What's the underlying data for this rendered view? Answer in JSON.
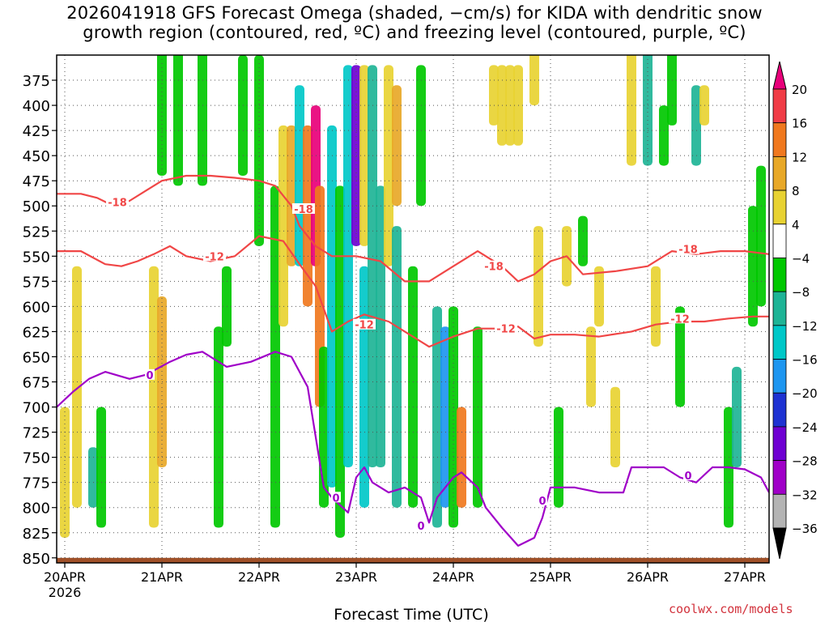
{
  "title": {
    "line1": "2026041918 GFS Forecast Omega (shaded, −cm/s) for KIDA with dendritic snow",
    "line2": "growth region (contoured, red, ºC) and freezing level (contoured, purple, ºC)"
  },
  "credit": "coolwx.com/models",
  "chart_data": {
    "type": "heatmap",
    "xlabel": "Forecast Time (UTC)",
    "ylabel": "",
    "x_ticks": [
      {
        "value": 0,
        "label": "20APR",
        "sublabel": "2026"
      },
      {
        "value": 24,
        "label": "21APR"
      },
      {
        "value": 48,
        "label": "22APR"
      },
      {
        "value": 72,
        "label": "23APR"
      },
      {
        "value": 96,
        "label": "24APR"
      },
      {
        "value": 120,
        "label": "25APR"
      },
      {
        "value": 144,
        "label": "26APR"
      },
      {
        "value": 168,
        "label": "27APR"
      }
    ],
    "xlim_hours": [
      -2,
      174
    ],
    "y_ticks": [
      375,
      400,
      425,
      450,
      475,
      500,
      525,
      550,
      575,
      600,
      625,
      650,
      675,
      700,
      725,
      750,
      775,
      800,
      825,
      850
    ],
    "ylim": [
      350,
      855
    ],
    "grid": true,
    "colorbar": {
      "labels": [
        "20",
        "16",
        "12",
        "8",
        "4",
        "−4",
        "−8",
        "−12",
        "−16",
        "−20",
        "−24",
        "−28",
        "−32",
        "−36"
      ],
      "colors": [
        "#e8007a",
        "#f03c46",
        "#f0781e",
        "#e8a828",
        "#e8d232",
        "#ffffff",
        "#00c800",
        "#1eb496",
        "#00c8c8",
        "#1e96f0",
        "#1e32d2",
        "#6e00d2",
        "#a000c8",
        "#b4b4b4",
        "#000000"
      ]
    },
    "terrain_color": "#a05028",
    "omega_cells": [
      {
        "t": 0,
        "p1": 700,
        "p2": 830,
        "v": 5
      },
      {
        "t": 3,
        "p1": 560,
        "p2": 800,
        "v": 5
      },
      {
        "t": 7,
        "p1": 740,
        "p2": 800,
        "v": -10
      },
      {
        "t": 9,
        "p1": 700,
        "p2": 820,
        "v": -6
      },
      {
        "t": 22,
        "p1": 560,
        "p2": 820,
        "v": 6
      },
      {
        "t": 24,
        "p1": 590,
        "p2": 760,
        "v": 10
      },
      {
        "t": 24,
        "p1": 330,
        "p2": 470,
        "v": -6
      },
      {
        "t": 28,
        "p1": 330,
        "p2": 480,
        "v": -6
      },
      {
        "t": 34,
        "p1": 330,
        "p2": 480,
        "v": -6
      },
      {
        "t": 38,
        "p1": 620,
        "p2": 820,
        "v": -6
      },
      {
        "t": 40,
        "p1": 560,
        "p2": 640,
        "v": -6
      },
      {
        "t": 44,
        "p1": 350,
        "p2": 470,
        "v": -6
      },
      {
        "t": 48,
        "p1": 350,
        "p2": 540,
        "v": -6
      },
      {
        "t": 52,
        "p1": 480,
        "p2": 820,
        "v": -6
      },
      {
        "t": 54,
        "p1": 420,
        "p2": 620,
        "v": 6
      },
      {
        "t": 56,
        "p1": 420,
        "p2": 560,
        "v": 10
      },
      {
        "t": 58,
        "p1": 380,
        "p2": 560,
        "v": -12
      },
      {
        "t": 60,
        "p1": 420,
        "p2": 600,
        "v": 12
      },
      {
        "t": 62,
        "p1": 400,
        "p2": 560,
        "v": 20
      },
      {
        "t": 63,
        "p1": 480,
        "p2": 700,
        "v": 14
      },
      {
        "t": 64,
        "p1": 640,
        "p2": 800,
        "v": -6
      },
      {
        "t": 66,
        "p1": 420,
        "p2": 780,
        "v": -12
      },
      {
        "t": 68,
        "p1": 480,
        "p2": 830,
        "v": -6
      },
      {
        "t": 70,
        "p1": 360,
        "p2": 760,
        "v": -14
      },
      {
        "t": 72,
        "p1": 360,
        "p2": 540,
        "v": -26
      },
      {
        "t": 74,
        "p1": 360,
        "p2": 540,
        "v": 6
      },
      {
        "t": 74,
        "p1": 560,
        "p2": 800,
        "v": -14
      },
      {
        "t": 76,
        "p1": 360,
        "p2": 760,
        "v": -8
      },
      {
        "t": 78,
        "p1": 480,
        "p2": 760,
        "v": -10
      },
      {
        "t": 80,
        "p1": 360,
        "p2": 560,
        "v": 6
      },
      {
        "t": 82,
        "p1": 380,
        "p2": 500,
        "v": 8
      },
      {
        "t": 82,
        "p1": 520,
        "p2": 800,
        "v": -10
      },
      {
        "t": 86,
        "p1": 560,
        "p2": 800,
        "v": -6
      },
      {
        "t": 88,
        "p1": 360,
        "p2": 500,
        "v": -6
      },
      {
        "t": 92,
        "p1": 600,
        "p2": 820,
        "v": -8
      },
      {
        "t": 94,
        "p1": 620,
        "p2": 800,
        "v": -18
      },
      {
        "t": 96,
        "p1": 600,
        "p2": 820,
        "v": -6
      },
      {
        "t": 98,
        "p1": 700,
        "p2": 800,
        "v": 14
      },
      {
        "t": 102,
        "p1": 620,
        "p2": 800,
        "v": -6
      },
      {
        "t": 106,
        "p1": 360,
        "p2": 420,
        "v": 6
      },
      {
        "t": 108,
        "p1": 360,
        "p2": 440,
        "v": 6
      },
      {
        "t": 110,
        "p1": 360,
        "p2": 440,
        "v": 6
      },
      {
        "t": 112,
        "p1": 360,
        "p2": 440,
        "v": 6
      },
      {
        "t": 116,
        "p1": 340,
        "p2": 400,
        "v": 6
      },
      {
        "t": 117,
        "p1": 520,
        "p2": 640,
        "v": 6
      },
      {
        "t": 122,
        "p1": 700,
        "p2": 800,
        "v": -6
      },
      {
        "t": 124,
        "p1": 520,
        "p2": 580,
        "v": 6
      },
      {
        "t": 128,
        "p1": 510,
        "p2": 560,
        "v": -6
      },
      {
        "t": 130,
        "p1": 620,
        "p2": 700,
        "v": 6
      },
      {
        "t": 132,
        "p1": 560,
        "p2": 620,
        "v": 6
      },
      {
        "t": 136,
        "p1": 680,
        "p2": 760,
        "v": 6
      },
      {
        "t": 140,
        "p1": 340,
        "p2": 460,
        "v": 6
      },
      {
        "t": 144,
        "p1": 340,
        "p2": 460,
        "v": -10
      },
      {
        "t": 146,
        "p1": 560,
        "p2": 640,
        "v": 6
      },
      {
        "t": 148,
        "p1": 400,
        "p2": 460,
        "v": -6
      },
      {
        "t": 150,
        "p1": 340,
        "p2": 420,
        "v": -6
      },
      {
        "t": 152,
        "p1": 600,
        "p2": 700,
        "v": -6
      },
      {
        "t": 156,
        "p1": 380,
        "p2": 460,
        "v": -10
      },
      {
        "t": 158,
        "p1": 380,
        "p2": 420,
        "v": 6
      },
      {
        "t": 164,
        "p1": 700,
        "p2": 820,
        "v": -6
      },
      {
        "t": 166,
        "p1": 660,
        "p2": 760,
        "v": -8
      },
      {
        "t": 170,
        "p1": 500,
        "p2": 620,
        "v": -6
      },
      {
        "t": 172,
        "p1": 460,
        "p2": 600,
        "v": -6
      }
    ],
    "contours": [
      {
        "name": "-18",
        "color": "#f04646",
        "points": [
          [
            -2,
            488
          ],
          [
            4,
            488
          ],
          [
            8,
            492
          ],
          [
            12,
            500
          ],
          [
            16,
            495
          ],
          [
            20,
            485
          ],
          [
            24,
            475
          ],
          [
            30,
            470
          ],
          [
            36,
            470
          ],
          [
            42,
            472
          ],
          [
            48,
            475
          ],
          [
            52,
            480
          ],
          [
            56,
            500
          ],
          [
            58,
            520
          ],
          [
            62,
            540
          ],
          [
            66,
            550
          ],
          [
            72,
            550
          ],
          [
            78,
            555
          ],
          [
            84,
            575
          ],
          [
            90,
            575
          ],
          [
            96,
            560
          ],
          [
            102,
            545
          ],
          [
            108,
            560
          ],
          [
            112,
            575
          ],
          [
            116,
            568
          ],
          [
            120,
            555
          ],
          [
            124,
            550
          ],
          [
            128,
            568
          ],
          [
            136,
            565
          ],
          [
            144,
            560
          ],
          [
            150,
            545
          ],
          [
            156,
            548
          ],
          [
            162,
            545
          ],
          [
            168,
            545
          ],
          [
            174,
            548
          ]
        ]
      },
      {
        "name": "-12",
        "color": "#f04646",
        "points": [
          [
            -2,
            545
          ],
          [
            4,
            545
          ],
          [
            10,
            558
          ],
          [
            14,
            560
          ],
          [
            18,
            555
          ],
          [
            22,
            548
          ],
          [
            26,
            540
          ],
          [
            30,
            550
          ],
          [
            36,
            555
          ],
          [
            42,
            550
          ],
          [
            48,
            530
          ],
          [
            54,
            535
          ],
          [
            58,
            558
          ],
          [
            62,
            580
          ],
          [
            66,
            625
          ],
          [
            70,
            615
          ],
          [
            74,
            608
          ],
          [
            80,
            615
          ],
          [
            84,
            625
          ],
          [
            90,
            640
          ],
          [
            96,
            630
          ],
          [
            102,
            622
          ],
          [
            108,
            622
          ],
          [
            112,
            620
          ],
          [
            116,
            632
          ],
          [
            120,
            628
          ],
          [
            126,
            628
          ],
          [
            132,
            630
          ],
          [
            140,
            625
          ],
          [
            146,
            618
          ],
          [
            152,
            615
          ],
          [
            158,
            615
          ],
          [
            164,
            612
          ],
          [
            170,
            610
          ],
          [
            174,
            610
          ]
        ]
      },
      {
        "name": "0",
        "color": "#a000c8",
        "points": [
          [
            -2,
            700
          ],
          [
            2,
            685
          ],
          [
            6,
            672
          ],
          [
            10,
            665
          ],
          [
            16,
            672
          ],
          [
            20,
            668
          ],
          [
            26,
            655
          ],
          [
            30,
            648
          ],
          [
            34,
            645
          ],
          [
            40,
            660
          ],
          [
            46,
            655
          ],
          [
            52,
            645
          ],
          [
            56,
            650
          ],
          [
            60,
            680
          ],
          [
            62,
            730
          ],
          [
            64,
            780
          ],
          [
            66,
            790
          ],
          [
            70,
            805
          ],
          [
            72,
            770
          ],
          [
            74,
            760
          ],
          [
            76,
            775
          ],
          [
            80,
            785
          ],
          [
            84,
            780
          ],
          [
            88,
            790
          ],
          [
            90,
            815
          ],
          [
            92,
            790
          ],
          [
            96,
            770
          ],
          [
            98,
            765
          ],
          [
            102,
            780
          ],
          [
            104,
            800
          ],
          [
            108,
            820
          ],
          [
            112,
            838
          ],
          [
            116,
            830
          ],
          [
            118,
            810
          ],
          [
            120,
            780
          ],
          [
            126,
            780
          ],
          [
            132,
            785
          ],
          [
            138,
            785
          ],
          [
            140,
            760
          ],
          [
            144,
            760
          ],
          [
            148,
            760
          ],
          [
            152,
            770
          ],
          [
            156,
            775
          ],
          [
            160,
            760
          ],
          [
            164,
            760
          ],
          [
            168,
            762
          ],
          [
            172,
            770
          ],
          [
            174,
            785
          ]
        ]
      }
    ],
    "contour_labels": [
      {
        "text": "-18",
        "t": 13,
        "p": 496
      },
      {
        "text": "-18",
        "t": 59,
        "p": 503
      },
      {
        "text": "-18",
        "t": 106,
        "p": 560
      },
      {
        "text": "-18",
        "t": 154,
        "p": 543
      },
      {
        "text": "-12",
        "t": 37,
        "p": 550
      },
      {
        "text": "-12",
        "t": 74,
        "p": 618
      },
      {
        "text": "-12",
        "t": 109,
        "p": 622
      },
      {
        "text": "-12",
        "t": 152,
        "p": 612
      },
      {
        "text": "0",
        "t": 21,
        "p": 668
      },
      {
        "text": "0",
        "t": 67,
        "p": 790
      },
      {
        "text": "0",
        "t": 88,
        "p": 818
      },
      {
        "text": "0",
        "t": 118,
        "p": 793
      },
      {
        "text": "0",
        "t": 154,
        "p": 768
      }
    ]
  }
}
